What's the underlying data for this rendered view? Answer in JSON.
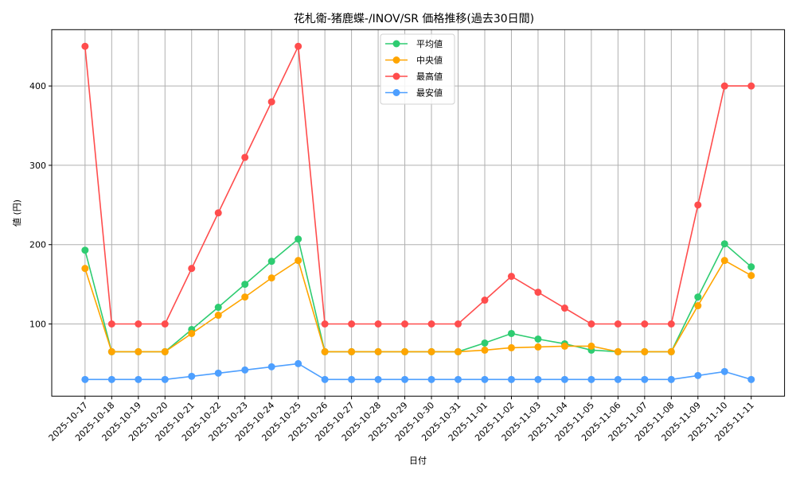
{
  "chart_data": {
    "type": "line",
    "title": "花札衛-猪鹿蝶-/INOV/SR 価格推移(過去30日間)",
    "xlabel": "日付",
    "ylabel": "値 (円)",
    "ylim": [
      9,
      471
    ],
    "yticks": [
      100,
      200,
      300,
      400
    ],
    "grid": true,
    "legend_position": "upper center",
    "categories": [
      "2025-10-17",
      "2025-10-18",
      "2025-10-19",
      "2025-10-20",
      "2025-10-21",
      "2025-10-22",
      "2025-10-23",
      "2025-10-24",
      "2025-10-25",
      "2025-10-26",
      "2025-10-27",
      "2025-10-28",
      "2025-10-29",
      "2025-10-30",
      "2025-10-31",
      "2025-11-01",
      "2025-11-02",
      "2025-11-03",
      "2025-11-04",
      "2025-11-05",
      "2025-11-06",
      "2025-11-07",
      "2025-11-08",
      "2025-11-09",
      "2025-11-10",
      "2025-11-11"
    ],
    "series": [
      {
        "name": "平均値",
        "color": "#2ecc71",
        "values": [
          193,
          65,
          65,
          65,
          93,
          121,
          150,
          179,
          207,
          65,
          65,
          65,
          65,
          65,
          65,
          76,
          88,
          81,
          75,
          67,
          65,
          65,
          65,
          134,
          201,
          172
        ]
      },
      {
        "name": "中央値",
        "color": "#ffa500",
        "values": [
          170,
          65,
          65,
          65,
          88,
          111,
          134,
          158,
          180,
          65,
          65,
          65,
          65,
          65,
          65,
          67,
          70,
          71,
          72,
          72,
          65,
          65,
          65,
          123,
          180,
          161
        ]
      },
      {
        "name": "最高値",
        "color": "#ff4d4d",
        "values": [
          450,
          100,
          100,
          100,
          170,
          240,
          310,
          380,
          450,
          100,
          100,
          100,
          100,
          100,
          100,
          130,
          160,
          140,
          120,
          100,
          100,
          100,
          100,
          250,
          400,
          400
        ]
      },
      {
        "name": "最安値",
        "color": "#4d9fff",
        "values": [
          30,
          30,
          30,
          30,
          34,
          38,
          42,
          46,
          50,
          30,
          30,
          30,
          30,
          30,
          30,
          30,
          30,
          30,
          30,
          30,
          30,
          30,
          30,
          35,
          40,
          30
        ]
      }
    ]
  }
}
